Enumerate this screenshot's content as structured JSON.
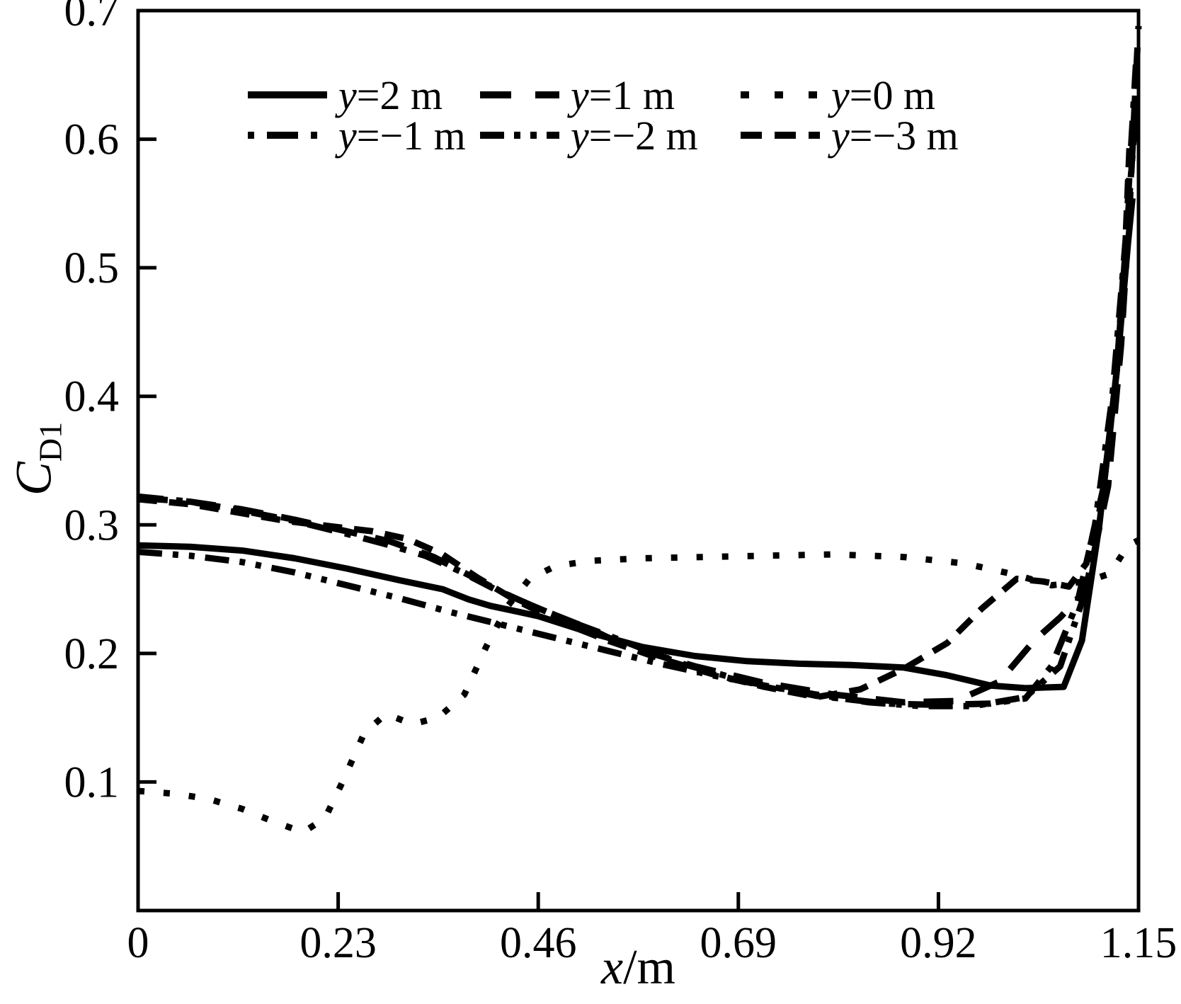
{
  "figure": {
    "background": "#ffffff",
    "line_color": "#000000"
  },
  "axis_labels": {
    "x_italic": "x",
    "x_rest": "/m",
    "y_italic": "C",
    "y_sub": "D1"
  },
  "chart_data": {
    "type": "line",
    "title": "",
    "xlabel": "x/m",
    "ylabel": "C_D1",
    "xlim": [
      0,
      1.15
    ],
    "ylim": [
      0,
      0.7
    ],
    "grid": false,
    "legend_position": "top-center, two rows of three",
    "x_ticks": {
      "values": [
        0,
        0.23,
        0.46,
        0.69,
        0.92,
        1.15
      ],
      "labels": [
        "0",
        "0.23",
        "0.46",
        "0.69",
        "0.92",
        "1.15"
      ]
    },
    "y_ticks": {
      "values": [
        0.1,
        0.2,
        0.3,
        0.4,
        0.5,
        0.6,
        0.7
      ],
      "labels": [
        "0.1",
        "0.2",
        "0.3",
        "0.4",
        "0.5",
        "0.6",
        "0.7"
      ]
    },
    "series": [
      {
        "key": "y2",
        "name": "y=2 m",
        "style": "solid",
        "points": [
          [
            0,
            0.284
          ],
          [
            0.06,
            0.283
          ],
          [
            0.12,
            0.28
          ],
          [
            0.18,
            0.274
          ],
          [
            0.24,
            0.266
          ],
          [
            0.3,
            0.257
          ],
          [
            0.35,
            0.25
          ],
          [
            0.38,
            0.242
          ],
          [
            0.405,
            0.237
          ],
          [
            0.44,
            0.232
          ],
          [
            0.46,
            0.229
          ],
          [
            0.52,
            0.216
          ],
          [
            0.58,
            0.205
          ],
          [
            0.64,
            0.198
          ],
          [
            0.7,
            0.194
          ],
          [
            0.76,
            0.192
          ],
          [
            0.82,
            0.191
          ],
          [
            0.88,
            0.189
          ],
          [
            0.93,
            0.183
          ],
          [
            0.98,
            0.175
          ],
          [
            1.02,
            0.173
          ],
          [
            1.064,
            0.174
          ],
          [
            1.085,
            0.21
          ],
          [
            1.105,
            0.3
          ],
          [
            1.125,
            0.42
          ],
          [
            1.138,
            0.52
          ],
          [
            1.143,
            0.554
          ]
        ]
      },
      {
        "key": "y1",
        "name": "y=1 m",
        "style": "long-dash",
        "points": [
          [
            0,
            0.321
          ],
          [
            0.06,
            0.318
          ],
          [
            0.12,
            0.312
          ],
          [
            0.18,
            0.304
          ],
          [
            0.24,
            0.295
          ],
          [
            0.29,
            0.287
          ],
          [
            0.34,
            0.275
          ],
          [
            0.38,
            0.261
          ],
          [
            0.42,
            0.247
          ],
          [
            0.46,
            0.235
          ],
          [
            0.52,
            0.219
          ],
          [
            0.56,
            0.206
          ],
          [
            0.64,
            0.19
          ],
          [
            0.72,
            0.177
          ],
          [
            0.8,
            0.168
          ],
          [
            0.88,
            0.162
          ],
          [
            0.94,
            0.163
          ],
          [
            0.99,
            0.178
          ],
          [
            1.03,
            0.21
          ],
          [
            1.06,
            0.228
          ],
          [
            1.09,
            0.25
          ],
          [
            1.115,
            0.33
          ],
          [
            1.13,
            0.44
          ],
          [
            1.14,
            0.55
          ],
          [
            1.15,
            0.688
          ]
        ]
      },
      {
        "key": "y0",
        "name": "y=0 m",
        "style": "dotted",
        "points": [
          [
            0,
            0.093
          ],
          [
            0.04,
            0.091
          ],
          [
            0.08,
            0.087
          ],
          [
            0.12,
            0.079
          ],
          [
            0.16,
            0.068
          ],
          [
            0.19,
            0.061
          ],
          [
            0.215,
            0.072
          ],
          [
            0.235,
            0.1
          ],
          [
            0.26,
            0.138
          ],
          [
            0.285,
            0.153
          ],
          [
            0.315,
            0.145
          ],
          [
            0.345,
            0.15
          ],
          [
            0.375,
            0.168
          ],
          [
            0.4,
            0.205
          ],
          [
            0.425,
            0.237
          ],
          [
            0.45,
            0.258
          ],
          [
            0.48,
            0.268
          ],
          [
            0.52,
            0.272
          ],
          [
            0.58,
            0.274
          ],
          [
            0.65,
            0.275
          ],
          [
            0.72,
            0.276
          ],
          [
            0.8,
            0.277
          ],
          [
            0.88,
            0.275
          ],
          [
            0.95,
            0.27
          ],
          [
            1.01,
            0.261
          ],
          [
            1.05,
            0.253
          ],
          [
            1.09,
            0.256
          ],
          [
            1.117,
            0.262
          ],
          [
            1.138,
            0.284
          ],
          [
            1.15,
            0.288
          ]
        ]
      },
      {
        "key": "ym1",
        "name": "y=−1 m",
        "style": "dash-dot",
        "points": [
          [
            0,
            0.322
          ],
          [
            0.06,
            0.318
          ],
          [
            0.12,
            0.311
          ],
          [
            0.18,
            0.303
          ],
          [
            0.24,
            0.293
          ],
          [
            0.29,
            0.284
          ],
          [
            0.33,
            0.276
          ],
          [
            0.37,
            0.264
          ],
          [
            0.41,
            0.25
          ],
          [
            0.45,
            0.238
          ],
          [
            0.5,
            0.224
          ],
          [
            0.56,
            0.209
          ],
          [
            0.62,
            0.193
          ],
          [
            0.7,
            0.178
          ],
          [
            0.78,
            0.167
          ],
          [
            0.86,
            0.161
          ],
          [
            0.92,
            0.16
          ],
          [
            0.98,
            0.161
          ],
          [
            1.02,
            0.165
          ],
          [
            1.05,
            0.19
          ],
          [
            1.08,
            0.24
          ],
          [
            1.1,
            0.3
          ],
          [
            1.12,
            0.4
          ],
          [
            1.135,
            0.52
          ],
          [
            1.147,
            0.658
          ]
        ]
      },
      {
        "key": "ym2",
        "name": "y=−2 m",
        "style": "dash-dot-dot",
        "points": [
          [
            0,
            0.279
          ],
          [
            0.06,
            0.276
          ],
          [
            0.12,
            0.271
          ],
          [
            0.18,
            0.263
          ],
          [
            0.24,
            0.253
          ],
          [
            0.3,
            0.243
          ],
          [
            0.36,
            0.232
          ],
          [
            0.42,
            0.222
          ],
          [
            0.48,
            0.212
          ],
          [
            0.54,
            0.202
          ],
          [
            0.6,
            0.192
          ],
          [
            0.66,
            0.183
          ],
          [
            0.72,
            0.175
          ],
          [
            0.78,
            0.168
          ],
          [
            0.84,
            0.162
          ],
          [
            0.9,
            0.159
          ],
          [
            0.96,
            0.159
          ],
          [
            1.02,
            0.166
          ],
          [
            1.06,
            0.19
          ],
          [
            1.09,
            0.25
          ],
          [
            1.11,
            0.33
          ],
          [
            1.125,
            0.42
          ],
          [
            1.14,
            0.56
          ],
          [
            1.148,
            0.632
          ]
        ]
      },
      {
        "key": "ym3",
        "name": "y=−3 m",
        "style": "dash",
        "points": [
          [
            0,
            0.32
          ],
          [
            0.06,
            0.316
          ],
          [
            0.12,
            0.309
          ],
          [
            0.17,
            0.303
          ],
          [
            0.22,
            0.299
          ],
          [
            0.27,
            0.295
          ],
          [
            0.31,
            0.289
          ],
          [
            0.35,
            0.277
          ],
          [
            0.39,
            0.259
          ],
          [
            0.43,
            0.243
          ],
          [
            0.48,
            0.226
          ],
          [
            0.54,
            0.21
          ],
          [
            0.6,
            0.196
          ],
          [
            0.66,
            0.184
          ],
          [
            0.72,
            0.174
          ],
          [
            0.78,
            0.166
          ],
          [
            0.83,
            0.172
          ],
          [
            0.88,
            0.188
          ],
          [
            0.93,
            0.208
          ],
          [
            0.97,
            0.235
          ],
          [
            1.01,
            0.258
          ],
          [
            1.04,
            0.256
          ],
          [
            1.07,
            0.252
          ],
          [
            1.09,
            0.27
          ],
          [
            1.11,
            0.33
          ],
          [
            1.125,
            0.42
          ],
          [
            1.135,
            0.52
          ],
          [
            1.14,
            0.6
          ]
        ]
      }
    ]
  }
}
